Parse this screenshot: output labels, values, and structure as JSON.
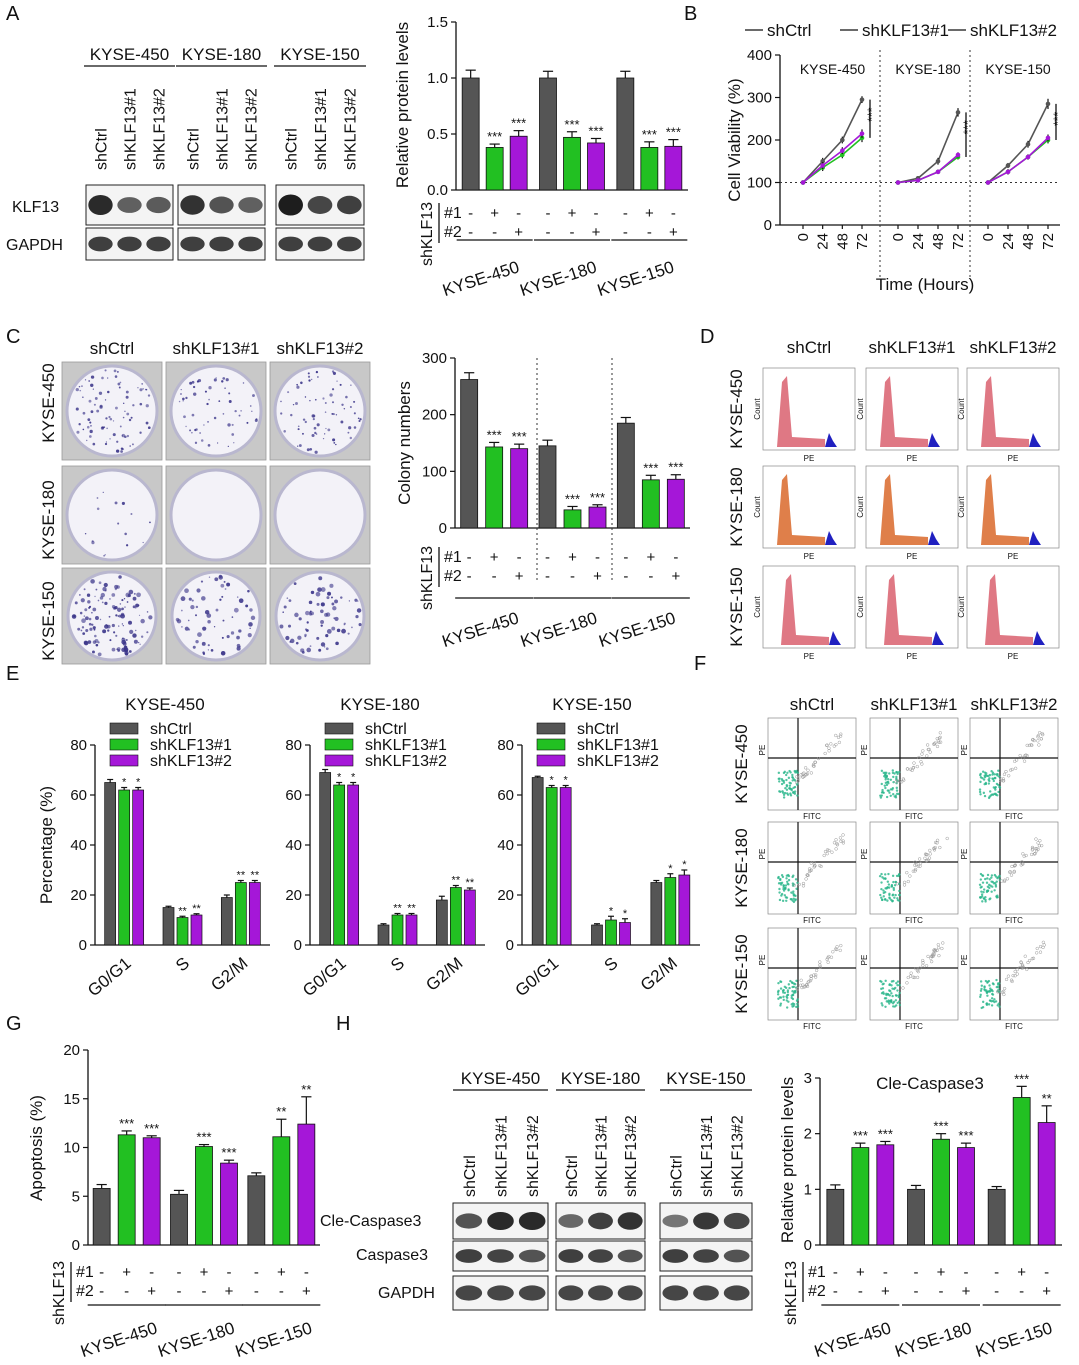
{
  "colors": {
    "ctrl": "#555555",
    "kd1": "#22c022",
    "kd2": "#a517d8",
    "flowRed": "#d9606e",
    "flowOrange": "#d9682a",
    "flowBlue": "#2020c0",
    "scatterGreen": "#27b58a"
  },
  "panel_letters": {
    "a": "A",
    "b": "B",
    "c": "C",
    "d": "D",
    "e": "E",
    "f": "F",
    "g": "G",
    "h": "H"
  },
  "cell_lines": [
    "KYSE-450",
    "KYSE-180",
    "KYSE-150"
  ],
  "groups": [
    "shCtrl",
    "shKLF13#1",
    "shKLF13#2"
  ],
  "design": {
    "label": "shKLF13",
    "rows": [
      {
        "name": "#1",
        "signs": [
          "-",
          "+",
          "-"
        ]
      },
      {
        "name": "#2",
        "signs": [
          "-",
          "-",
          "+"
        ]
      }
    ]
  },
  "blot_a": {
    "rows": [
      "KLF13",
      "GAPDH"
    ]
  },
  "blot_h": {
    "rows": [
      "Cle-Caspase3",
      "Caspase3",
      "GAPDH"
    ]
  },
  "flow_d": {
    "row_labels": [
      "KYSE-450",
      "KYSE-180",
      "KYSE-150"
    ],
    "xlabel": "PE",
    "ylabel": "Count"
  },
  "flow_f": {
    "row_labels": [
      "KYSE-450",
      "KYSE-180",
      "KYSE-150"
    ],
    "xlabel": "FITC",
    "ylabel": "PE"
  },
  "colony_c": {
    "row_labels": [
      "KYSE-450",
      "KYSE-180",
      "KYSE-150"
    ],
    "density": [
      0.55,
      0.35,
      0.45,
      0.1,
      0.0,
      0.0,
      0.8,
      0.4,
      0.45
    ]
  },
  "chart_data": [
    {
      "id": "A-bar",
      "type": "bar",
      "ylabel": "Relative protein levels",
      "ylim": [
        0,
        1.5
      ],
      "yticks": [
        0.0,
        0.5,
        1.0,
        1.5
      ],
      "groups": [
        "KYSE-450",
        "KYSE-180",
        "KYSE-150"
      ],
      "series_keys": [
        "shCtrl",
        "shKLF13#1",
        "shKLF13#2"
      ],
      "values": [
        [
          1.0,
          0.38,
          0.48
        ],
        [
          1.0,
          0.47,
          0.42
        ],
        [
          1.0,
          0.38,
          0.39
        ]
      ],
      "errors": [
        [
          0.07,
          0.03,
          0.05
        ],
        [
          0.06,
          0.05,
          0.04
        ],
        [
          0.06,
          0.05,
          0.06
        ]
      ],
      "sig": [
        [
          "",
          "***",
          "***"
        ],
        [
          "",
          "***",
          "***"
        ],
        [
          "",
          "***",
          "***"
        ]
      ]
    },
    {
      "id": "B-line",
      "type": "line",
      "ylabel": "Cell Viability (%)",
      "xlabel": "Time (Hours)",
      "ylim": [
        0,
        400
      ],
      "yticks": [
        0,
        100,
        200,
        300,
        400
      ],
      "x": [
        0,
        24,
        48,
        72
      ],
      "legend": [
        "shCtrl",
        "shKLF13#1",
        "shKLF13#2"
      ],
      "panels": [
        {
          "name": "KYSE-450",
          "series": [
            [
              100,
              150,
              200,
              295
            ],
            [
              100,
              135,
              165,
              205
            ],
            [
              100,
              140,
              175,
              215
            ]
          ],
          "errors": [
            [
              3,
              8,
              8,
              8
            ],
            [
              3,
              8,
              8,
              10
            ],
            [
              3,
              8,
              8,
              10
            ]
          ],
          "sig": "***"
        },
        {
          "name": "KYSE-180",
          "series": [
            [
              100,
              110,
              150,
              265
            ],
            [
              100,
              105,
              125,
              160
            ],
            [
              100,
              105,
              125,
              165
            ]
          ],
          "errors": [
            [
              3,
              5,
              8,
              10
            ],
            [
              3,
              5,
              5,
              6
            ],
            [
              3,
              5,
              5,
              6
            ]
          ],
          "sig": "***"
        },
        {
          "name": "KYSE-150",
          "series": [
            [
              100,
              140,
              190,
              285
            ],
            [
              100,
              125,
              160,
              200
            ],
            [
              100,
              125,
              160,
              205
            ]
          ],
          "errors": [
            [
              3,
              6,
              8,
              12
            ],
            [
              3,
              6,
              6,
              8
            ],
            [
              3,
              6,
              6,
              8
            ]
          ],
          "sig": "***"
        }
      ]
    },
    {
      "id": "C-bar",
      "type": "bar",
      "ylabel": "Colony numbers",
      "ylim": [
        0,
        300
      ],
      "yticks": [
        0,
        100,
        200,
        300
      ],
      "groups": [
        "KYSE-450",
        "KYSE-180",
        "KYSE-150"
      ],
      "series_keys": [
        "shCtrl",
        "shKLF13#1",
        "shKLF13#2"
      ],
      "values": [
        [
          262,
          143,
          140
        ],
        [
          145,
          32,
          37
        ],
        [
          185,
          85,
          86
        ]
      ],
      "errors": [
        [
          12,
          8,
          8
        ],
        [
          10,
          6,
          4
        ],
        [
          10,
          8,
          8
        ]
      ],
      "sig": [
        [
          "",
          "***",
          "***"
        ],
        [
          "",
          "***",
          "***"
        ],
        [
          "",
          "***",
          "***"
        ]
      ]
    },
    {
      "id": "E1",
      "type": "bar",
      "title": "KYSE-450",
      "ylabel": "Percentage (%)",
      "ylim": [
        0,
        80
      ],
      "yticks": [
        0,
        20,
        40,
        60,
        80
      ],
      "categories": [
        "G0/G1",
        "S",
        "G2/M"
      ],
      "legend": [
        "shCtrl",
        "shKLF13#1",
        "shKLF13#2"
      ],
      "values": [
        [
          65,
          62,
          62
        ],
        [
          15,
          11,
          12
        ],
        [
          19,
          25,
          25
        ]
      ],
      "errors": [
        [
          1.2,
          1,
          1
        ],
        [
          0.5,
          0.5,
          0.5
        ],
        [
          1,
          0.8,
          0.8
        ]
      ],
      "sig": [
        [
          "",
          "*",
          "*"
        ],
        [
          "",
          "**",
          "**"
        ],
        [
          "",
          "**",
          "**"
        ]
      ]
    },
    {
      "id": "E2",
      "type": "bar",
      "title": "KYSE-180",
      "ylabel": "",
      "ylim": [
        0,
        80
      ],
      "yticks": [
        0,
        20,
        40,
        60,
        80
      ],
      "categories": [
        "G0/G1",
        "S",
        "G2/M"
      ],
      "legend": [
        "shCtrl",
        "shKLF13#1",
        "shKLF13#2"
      ],
      "values": [
        [
          69,
          64,
          64
        ],
        [
          8,
          12,
          12
        ],
        [
          18,
          23,
          22
        ]
      ],
      "errors": [
        [
          1.2,
          1,
          1
        ],
        [
          0.5,
          0.6,
          0.6
        ],
        [
          1.5,
          0.8,
          0.8
        ]
      ],
      "sig": [
        [
          "",
          "*",
          "*"
        ],
        [
          "",
          "**",
          "**"
        ],
        [
          "",
          "**",
          "**"
        ]
      ]
    },
    {
      "id": "E3",
      "type": "bar",
      "title": "KYSE-150",
      "ylabel": "",
      "ylim": [
        0,
        80
      ],
      "yticks": [
        0,
        20,
        40,
        60,
        80
      ],
      "categories": [
        "G0/G1",
        "S",
        "G2/M"
      ],
      "legend": [
        "shCtrl",
        "shKLF13#1",
        "shKLF13#2"
      ],
      "values": [
        [
          67,
          63,
          63
        ],
        [
          8,
          10,
          9
        ],
        [
          25,
          27,
          28
        ]
      ],
      "errors": [
        [
          0.5,
          0.8,
          0.8
        ],
        [
          0.5,
          1.5,
          1.5
        ],
        [
          0.8,
          1.5,
          2
        ]
      ],
      "sig": [
        [
          "",
          "*",
          "*"
        ],
        [
          "",
          "*",
          "*"
        ],
        [
          "",
          "*",
          "*"
        ]
      ]
    },
    {
      "id": "G-bar",
      "type": "bar",
      "ylabel": "Apoptosis (%)",
      "ylim": [
        0,
        20
      ],
      "yticks": [
        0,
        5,
        10,
        15,
        20
      ],
      "groups": [
        "KYSE-450",
        "KYSE-180",
        "KYSE-150"
      ],
      "series_keys": [
        "shCtrl",
        "shKLF13#1",
        "shKLF13#2"
      ],
      "values": [
        [
          5.8,
          11.3,
          11.0
        ],
        [
          5.2,
          10.1,
          8.4
        ],
        [
          7.1,
          11.1,
          12.4
        ]
      ],
      "errors": [
        [
          0.4,
          0.4,
          0.2
        ],
        [
          0.4,
          0.2,
          0.3
        ],
        [
          0.3,
          1.8,
          2.8
        ]
      ],
      "sig": [
        [
          "",
          "***",
          "***"
        ],
        [
          "",
          "***",
          "***"
        ],
        [
          "",
          "**",
          "**"
        ]
      ]
    },
    {
      "id": "H-bar",
      "type": "bar",
      "title": "Cle-Caspase3",
      "ylabel": "Relative protein levels",
      "ylim": [
        0,
        3
      ],
      "yticks": [
        0,
        1,
        2,
        3
      ],
      "groups": [
        "KYSE-450",
        "KYSE-180",
        "KYSE-150"
      ],
      "series_keys": [
        "shCtrl",
        "shKLF13#1",
        "shKLF13#2"
      ],
      "values": [
        [
          1.0,
          1.75,
          1.8
        ],
        [
          1.0,
          1.9,
          1.75
        ],
        [
          1.0,
          2.65,
          2.2
        ]
      ],
      "errors": [
        [
          0.08,
          0.08,
          0.06
        ],
        [
          0.07,
          0.1,
          0.08
        ],
        [
          0.05,
          0.2,
          0.3
        ]
      ],
      "sig": [
        [
          "",
          "***",
          "***"
        ],
        [
          "",
          "***",
          "***"
        ],
        [
          "",
          "***",
          "**"
        ]
      ]
    }
  ]
}
